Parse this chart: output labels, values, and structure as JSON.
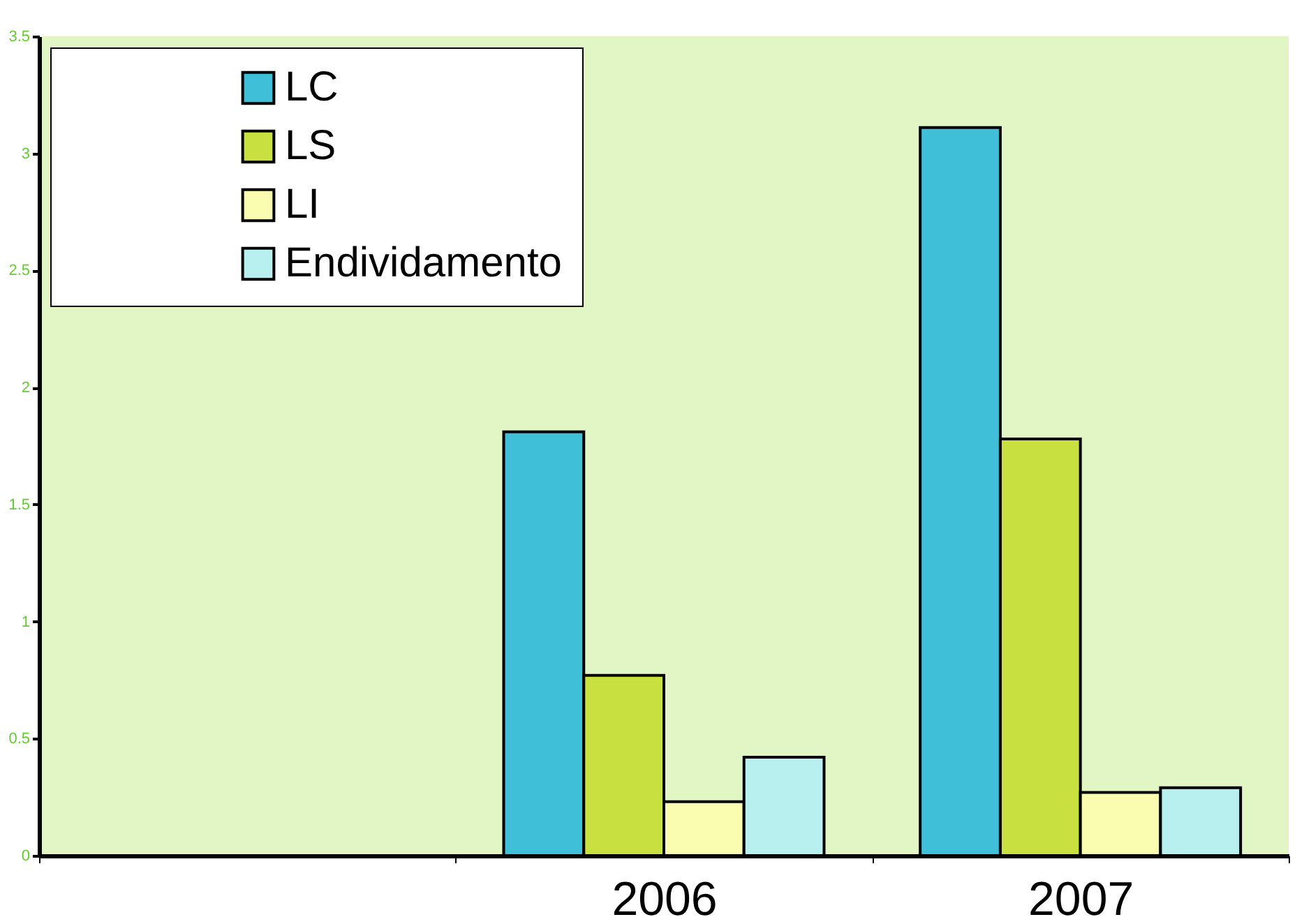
{
  "chart_data": {
    "type": "bar",
    "categories": [
      null,
      "2006",
      "2007"
    ],
    "series": [
      {
        "name": "LC",
        "color": "#40c0d8",
        "values": [
          null,
          1.81,
          3.11
        ]
      },
      {
        "name": "LS",
        "color": "#c8e040",
        "values": [
          null,
          0.77,
          1.78
        ]
      },
      {
        "name": "LI",
        "color": "#fafcb0",
        "values": [
          null,
          0.23,
          0.27
        ]
      },
      {
        "name": "Endividamento",
        "color": "#b8f0f0",
        "values": [
          null,
          0.42,
          0.29
        ]
      }
    ],
    "ylim": [
      0,
      3.5
    ],
    "yticks": [
      0,
      0.5,
      1,
      1.5,
      2,
      2.5,
      3,
      3.5
    ],
    "grid": false,
    "legend": "top left"
  }
}
